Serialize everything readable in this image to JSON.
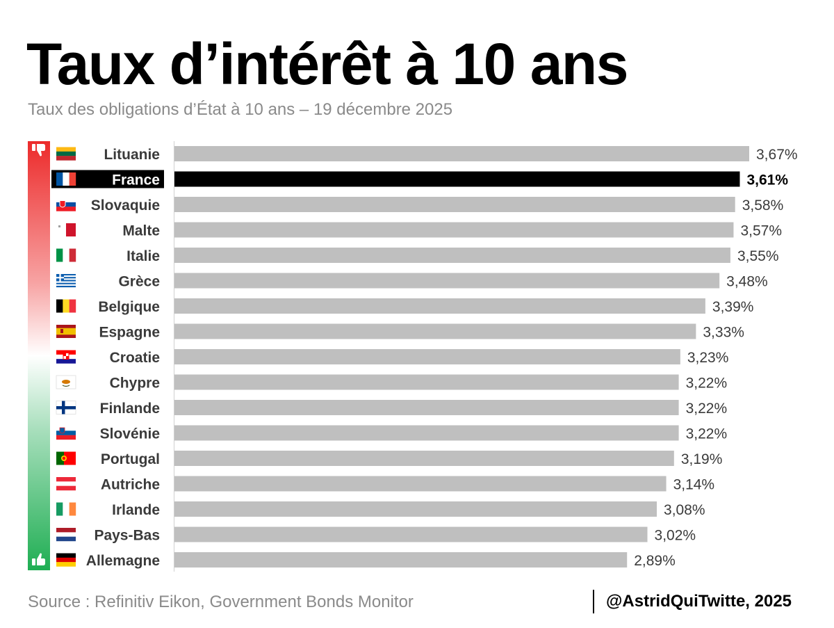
{
  "title": "Taux d’intérêt à 10 ans",
  "subtitle": "Taux des obligations d’État à 10 ans – 19 décembre 2025",
  "source": "Source : Refinitiv Eikon, Government Bonds Monitor",
  "credit": "@AstridQuiTwitte, 2025",
  "colors": {
    "bar": "#bfbfbf",
    "highlight": "#000000",
    "scale_top": "#ec2b2b",
    "scale_bottom": "#1fae53",
    "axis": "#d0d0d0",
    "label": "#3a3a3a"
  },
  "scale_icons": {
    "top": "thumbs-down-icon",
    "bottom": "thumbs-up-icon"
  },
  "chart_data": {
    "type": "bar",
    "orientation": "horizontal",
    "xlim": [
      0,
      3.67
    ],
    "highlight": "France",
    "categories": [
      "Lituanie",
      "France",
      "Slovaquie",
      "Malte",
      "Italie",
      "Grèce",
      "Belgique",
      "Espagne",
      "Croatie",
      "Chypre",
      "Finlande",
      "Slovénie",
      "Portugal",
      "Autriche",
      "Irlande",
      "Pays-Bas",
      "Allemagne"
    ],
    "values": [
      3.67,
      3.61,
      3.58,
      3.57,
      3.55,
      3.48,
      3.39,
      3.33,
      3.23,
      3.22,
      3.22,
      3.22,
      3.19,
      3.14,
      3.08,
      3.02,
      2.89
    ],
    "value_labels": [
      "3,67%",
      "3,61%",
      "3,58%",
      "3,57%",
      "3,55%",
      "3,48%",
      "3,39%",
      "3,33%",
      "3,23%",
      "3,22%",
      "3,22%",
      "3,22%",
      "3,19%",
      "3,14%",
      "3,08%",
      "3,02%",
      "2,89%"
    ],
    "flags": [
      "lithuania-flag-icon",
      "france-flag-icon",
      "slovakia-flag-icon",
      "malta-flag-icon",
      "italy-flag-icon",
      "greece-flag-icon",
      "belgium-flag-icon",
      "spain-flag-icon",
      "croatia-flag-icon",
      "cyprus-flag-icon",
      "finland-flag-icon",
      "slovenia-flag-icon",
      "portugal-flag-icon",
      "austria-flag-icon",
      "ireland-flag-icon",
      "netherlands-flag-icon",
      "germany-flag-icon"
    ]
  }
}
